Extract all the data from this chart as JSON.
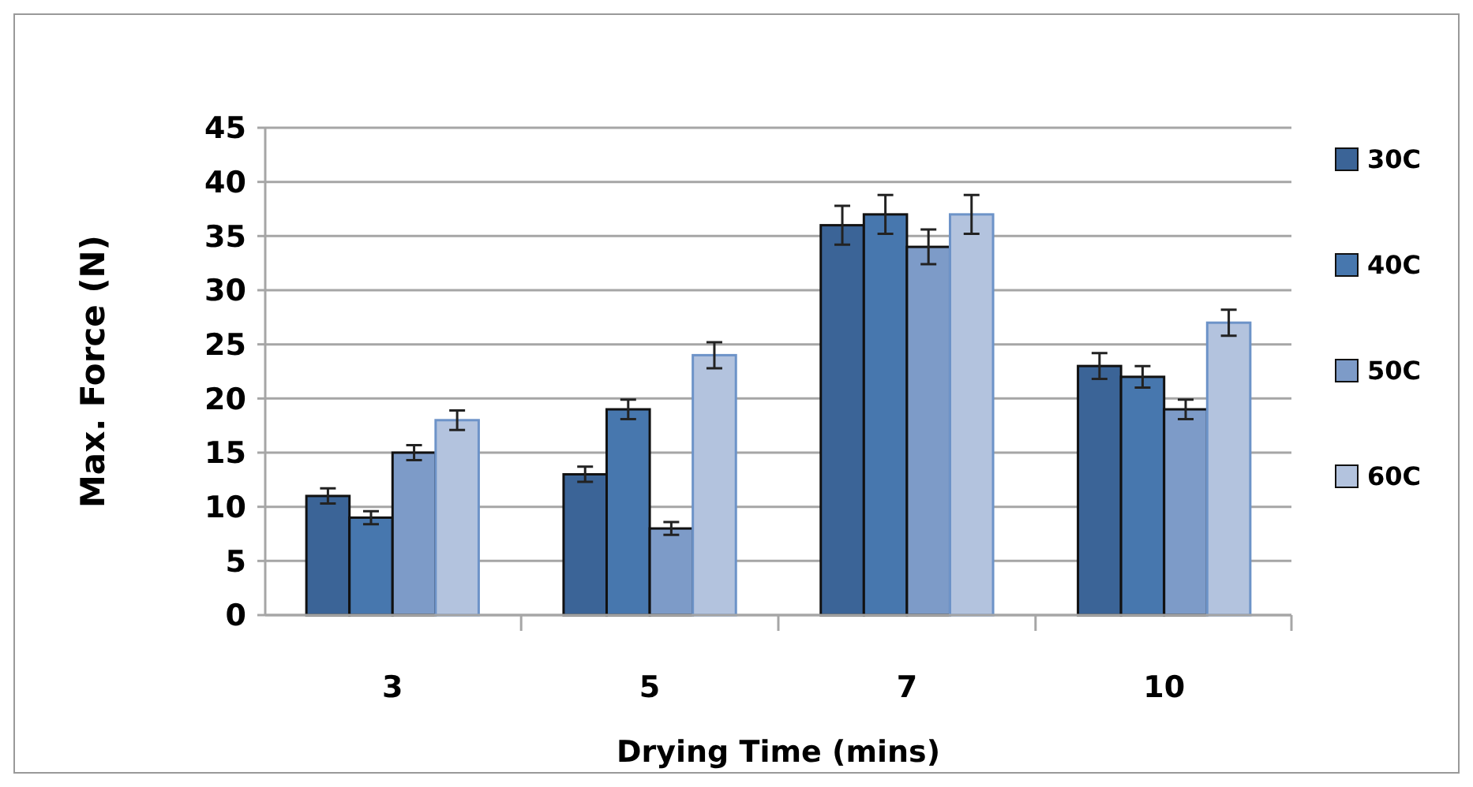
{
  "chart_data": {
    "type": "bar",
    "xlabel": "Drying Time (mins)",
    "ylabel": "Max. Force (N)",
    "categories": [
      "3",
      "5",
      "7",
      "10"
    ],
    "series": [
      {
        "name": "30C",
        "color": "#3b6497",
        "values": [
          11,
          13,
          36,
          23
        ],
        "errors": [
          0.7,
          0.7,
          1.8,
          1.2
        ]
      },
      {
        "name": "40C",
        "color": "#4777ae",
        "values": [
          9,
          19,
          37,
          22
        ],
        "errors": [
          0.6,
          0.9,
          1.8,
          1.0
        ]
      },
      {
        "name": "50C",
        "color": "#7d9bc8",
        "values": [
          15,
          8,
          34,
          19
        ],
        "errors": [
          0.7,
          0.6,
          1.6,
          0.9
        ]
      },
      {
        "name": "60C",
        "color": "#b3c3de",
        "values": [
          18,
          24,
          37,
          27
        ],
        "errors": [
          0.9,
          1.2,
          1.8,
          1.2
        ]
      }
    ],
    "ylim": [
      0,
      45
    ],
    "yticks": [
      0,
      5,
      10,
      15,
      20,
      25,
      30,
      35,
      40,
      45
    ],
    "grid": "y",
    "legend": "right"
  }
}
